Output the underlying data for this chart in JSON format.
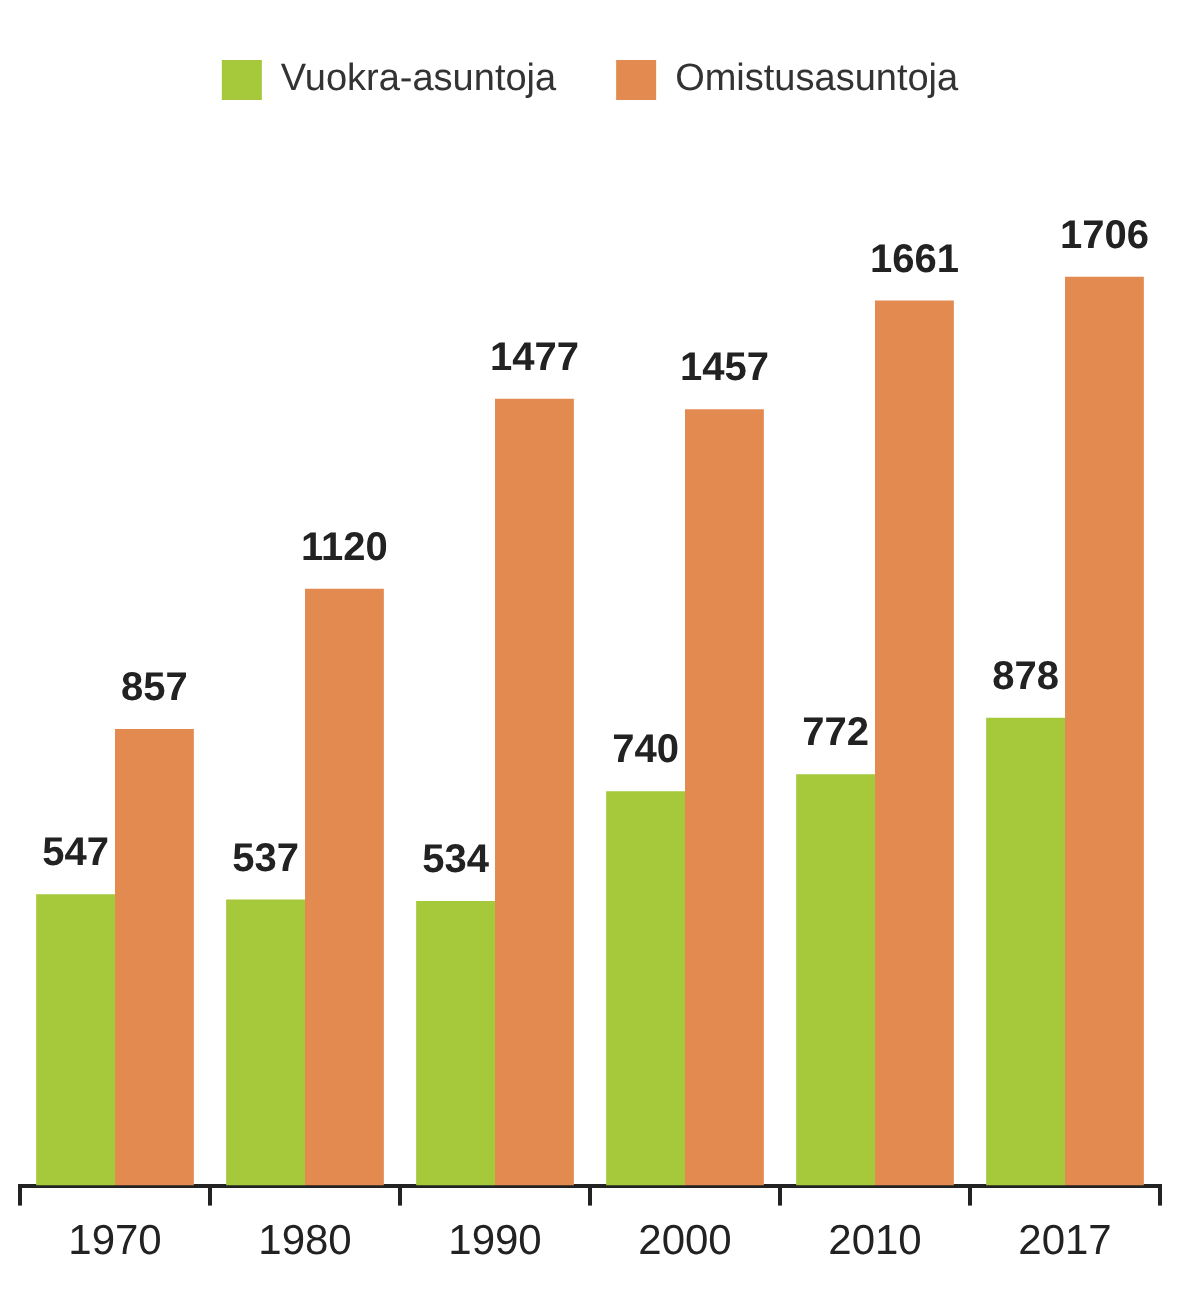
{
  "chart_data": {
    "type": "bar",
    "categories": [
      "1970",
      "1980",
      "1990",
      "2000",
      "2010",
      "2017"
    ],
    "series": [
      {
        "name": "Vuokra-asuntoja",
        "color": "#a5c93a",
        "values": [
          547,
          537,
          534,
          740,
          772,
          878
        ]
      },
      {
        "name": "Omistusasuntoja",
        "color": "#e38a50",
        "values": [
          857,
          1120,
          1477,
          1457,
          1661,
          1706
        ]
      }
    ],
    "data_labels": true,
    "legend": "top",
    "grid": false,
    "tick_labels": "x"
  }
}
